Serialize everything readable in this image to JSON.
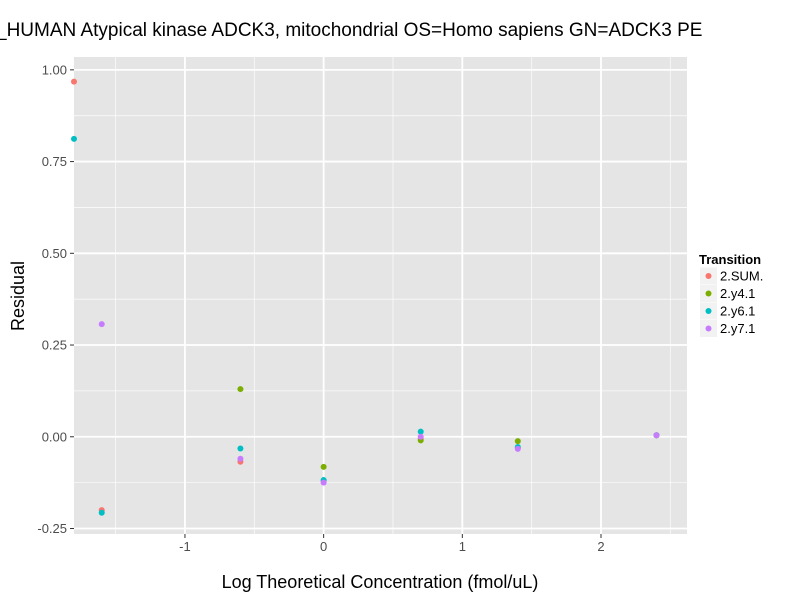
{
  "chart_data": {
    "type": "scatter",
    "title": "_HUMAN Atypical kinase ADCK3, mitochondrial OS=Homo sapiens GN=ADCK3 PE",
    "xlabel": "Log Theoretical Concentration (fmol/uL)",
    "ylabel": "Residual",
    "xlim": [
      -1.8,
      2.62
    ],
    "ylim": [
      -0.265,
      1.035
    ],
    "x_ticks": [
      -1,
      0,
      1,
      2
    ],
    "x_tick_labels": [
      "-1",
      "0",
      "1",
      "2"
    ],
    "y_ticks": [
      -0.25,
      0,
      0.25,
      0.5,
      0.75,
      1.0
    ],
    "y_tick_labels": [
      "-0.25",
      "0.00",
      "0.25",
      "0.50",
      "0.75",
      "1.00"
    ],
    "grid": true,
    "panel_background": "#e5e5e5",
    "grid_color": "#ffffff",
    "legend_placement": "right",
    "legend_title": "Transition",
    "series": [
      {
        "name": "2.SUM.",
        "color": "#f8766d",
        "points": [
          {
            "x": -1.8,
            "y": 0.968
          },
          {
            "x": -1.6,
            "y": -0.2
          },
          {
            "x": -0.6,
            "y": -0.068
          },
          {
            "x": 0.0,
            "y": -0.12
          },
          {
            "x": 0.7,
            "y": -0.005
          },
          {
            "x": 1.4,
            "y": -0.03
          },
          {
            "x": 2.4,
            "y": 0.004
          }
        ]
      },
      {
        "name": "2.y4.1",
        "color": "#7cae00",
        "points": [
          {
            "x": -0.6,
            "y": 0.13
          },
          {
            "x": 0.0,
            "y": -0.082
          },
          {
            "x": 0.7,
            "y": -0.01
          },
          {
            "x": 1.4,
            "y": -0.012
          },
          {
            "x": 2.4,
            "y": 0.004
          }
        ]
      },
      {
        "name": "2.y6.1",
        "color": "#00bfc4",
        "points": [
          {
            "x": -1.8,
            "y": 0.812
          },
          {
            "x": -1.6,
            "y": -0.207
          },
          {
            "x": -0.6,
            "y": -0.032
          },
          {
            "x": 0.0,
            "y": -0.118
          },
          {
            "x": 0.7,
            "y": 0.014
          },
          {
            "x": 1.4,
            "y": -0.028
          },
          {
            "x": 2.4,
            "y": 0.004
          }
        ]
      },
      {
        "name": "2.y7.1",
        "color": "#c77cff",
        "points": [
          {
            "x": -1.6,
            "y": 0.307
          },
          {
            "x": -0.6,
            "y": -0.06
          },
          {
            "x": 0.0,
            "y": -0.125
          },
          {
            "x": 0.7,
            "y": 0.0
          },
          {
            "x": 1.4,
            "y": -0.033
          },
          {
            "x": 2.4,
            "y": 0.004
          }
        ]
      }
    ]
  }
}
